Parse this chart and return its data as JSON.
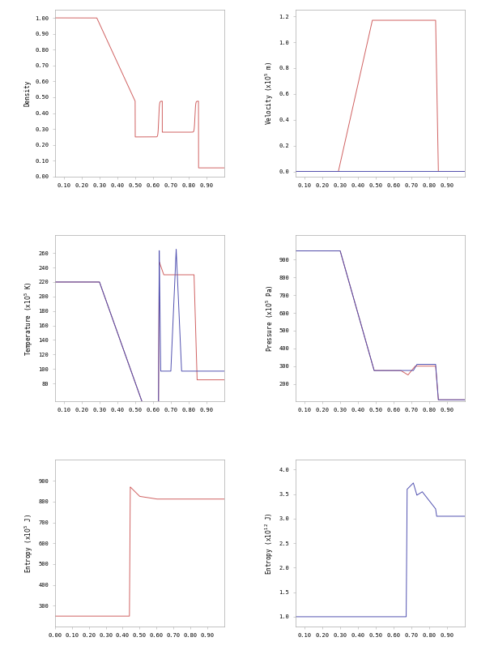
{
  "figsize": [
    5.89,
    8.18
  ],
  "dpi": 100,
  "background": "#ffffff",
  "red_color": "#d06060",
  "blue_color": "#5050b0",
  "linewidth": 0.7
}
